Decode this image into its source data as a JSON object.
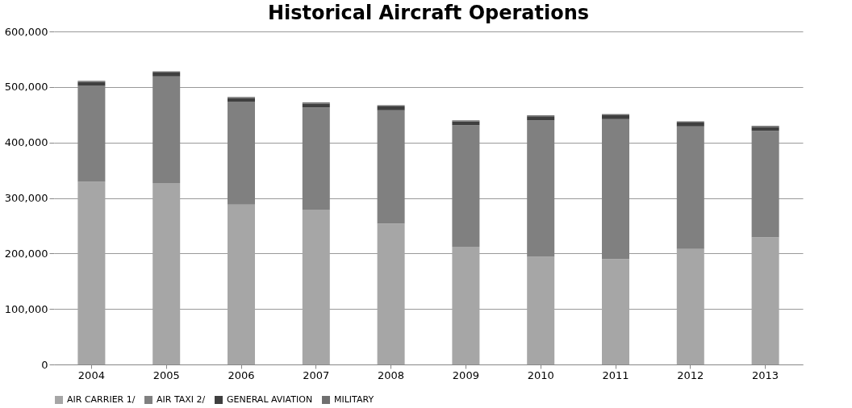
{
  "chart_data": {
    "type": "bar",
    "title": "Historical Aircraft Operations",
    "stacked": true,
    "categories": [
      "2004",
      "2005",
      "2006",
      "2007",
      "2008",
      "2009",
      "2010",
      "2011",
      "2012",
      "2013"
    ],
    "series": [
      {
        "name": "AIR CARRIER 1/",
        "color": "#a6a6a6",
        "values": [
          329000,
          327000,
          288000,
          279000,
          254000,
          212000,
          194000,
          190000,
          208000,
          229000
        ]
      },
      {
        "name": "AIR TAXI 2/",
        "color": "#808080",
        "values": [
          173000,
          192000,
          185000,
          184000,
          204000,
          219000,
          246000,
          252000,
          221000,
          192000
        ]
      },
      {
        "name": "GENERAL AVIATION",
        "color": "#3f3f3f",
        "values": [
          7000,
          7000,
          7000,
          7000,
          7000,
          7000,
          7000,
          7000,
          7000,
          7000
        ]
      },
      {
        "name": "MILITARY",
        "color": "#707070",
        "values": [
          2000,
          2000,
          2000,
          2000,
          2000,
          2000,
          2000,
          2000,
          2000,
          2000
        ]
      }
    ],
    "ylim": [
      0,
      600000
    ],
    "yticks": [
      0,
      {
        "value": 100000,
        "label": "100,000"
      },
      {
        "value": 200000,
        "label": "200,000"
      },
      {
        "value": 300000,
        "label": "300,000"
      },
      {
        "value": 400000,
        "label": "400,000"
      },
      {
        "value": 500000,
        "label": "500,000"
      },
      {
        "value": 600000,
        "label": "600,000"
      }
    ],
    "grid": "y",
    "legend": "bottom"
  }
}
